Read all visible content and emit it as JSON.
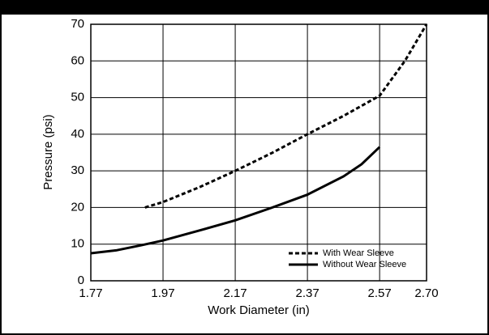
{
  "chart_data": {
    "type": "line",
    "x_label": "Work Diameter (in)",
    "y_label": "Pressure (psi)",
    "xlim": [
      1.77,
      2.7
    ],
    "xticks": [
      1.77,
      1.97,
      2.17,
      2.37,
      2.57,
      {
        "value": 2.7,
        "label": "2.70"
      }
    ],
    "ylim": [
      0,
      70
    ],
    "yticks": [
      0,
      10,
      20,
      30,
      40,
      50,
      60,
      70
    ],
    "grid": true,
    "legend": "lower right",
    "series": [
      {
        "name": "With Wear Sleeve",
        "color": "#000000",
        "dash": true,
        "x": [
          1.92,
          1.97,
          2.07,
          2.17,
          2.27,
          2.37,
          2.47,
          2.57,
          2.64,
          2.7
        ],
        "values": [
          20,
          21.5,
          25.5,
          30,
          34.8,
          40,
          45,
          50.5,
          60,
          70
        ]
      },
      {
        "name": "Without Wear Sleeve",
        "color": "#000000",
        "dash": false,
        "x": [
          1.77,
          1.84,
          1.91,
          1.97,
          2.07,
          2.17,
          2.27,
          2.37,
          2.47,
          2.52,
          2.57
        ],
        "values": [
          7.5,
          8.3,
          9.7,
          11,
          13.7,
          16.5,
          19.9,
          23.5,
          28.5,
          31.8,
          36.5
        ]
      }
    ]
  }
}
